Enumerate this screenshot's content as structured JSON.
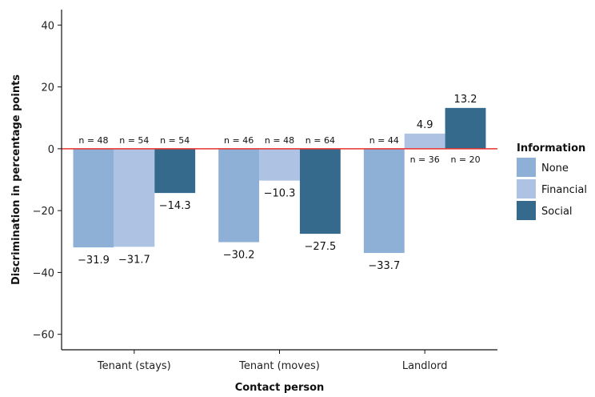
{
  "chart_data": {
    "type": "bar",
    "categories": [
      "Tenant (stays)",
      "Tenant (moves)",
      "Landlord"
    ],
    "series": [
      {
        "name": "None",
        "values": [
          -31.9,
          -30.2,
          -33.7
        ],
        "labels": [
          "−31.9",
          "−30.2",
          "−33.7"
        ],
        "n": [
          "n = 48",
          "n = 46",
          "n = 44"
        ],
        "color": "#8fb0d6"
      },
      {
        "name": "Financial",
        "values": [
          -31.7,
          -10.3,
          4.9
        ],
        "labels": [
          "−31.7",
          "−10.3",
          "4.9"
        ],
        "n": [
          "n = 54",
          "n = 48",
          "n = 36"
        ],
        "color": "#aec3e3"
      },
      {
        "name": "Social",
        "values": [
          -14.3,
          -27.5,
          13.2
        ],
        "labels": [
          "−14.3",
          "−27.5",
          "13.2"
        ],
        "n": [
          "n = 54",
          "n = 64",
          "n = 20"
        ],
        "color": "#356a8c"
      }
    ],
    "xlabel": "Contact person",
    "ylabel": "Discrimination in percentage points",
    "ylim": [
      -65,
      45
    ],
    "yticks": [
      40,
      20,
      0,
      -20,
      -40,
      -60
    ],
    "ytick_labels": [
      "40",
      "20",
      "0",
      "−20",
      "−40",
      "−60"
    ],
    "zero_line_color": "#e8322b",
    "legend_title": "Information",
    "legend_position": "right",
    "grid": false
  }
}
